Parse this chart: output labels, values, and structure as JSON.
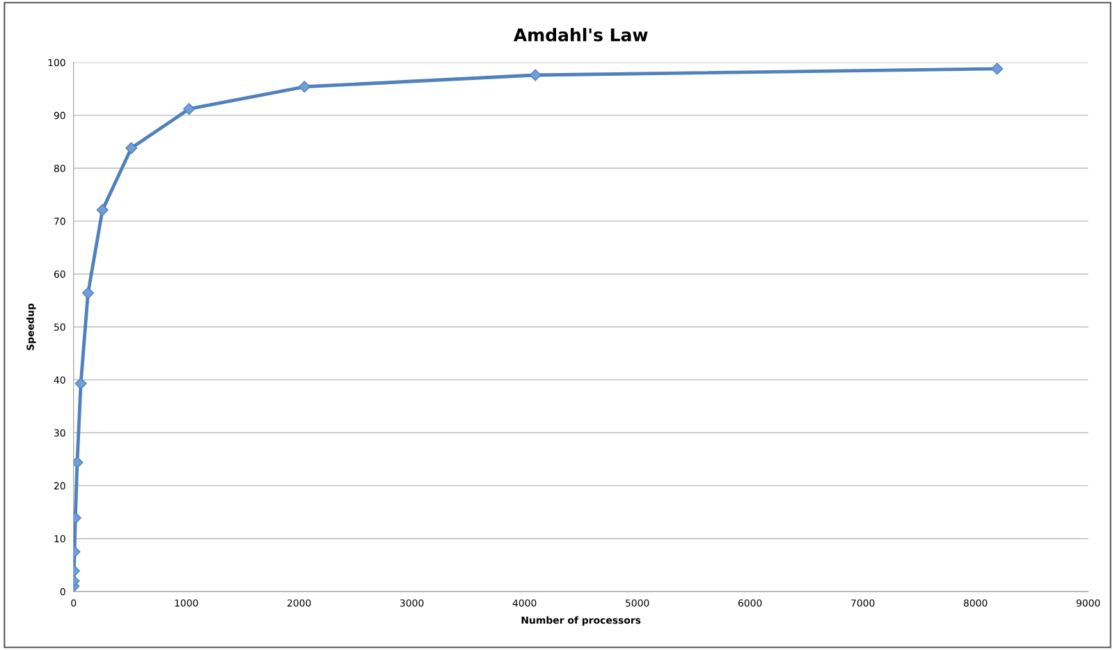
{
  "chart_data": {
    "type": "line",
    "title": "Amdahl's Law",
    "xlabel": "Number of processors",
    "ylabel": "Speedup",
    "x": [
      1,
      2,
      4,
      8,
      16,
      32,
      64,
      128,
      256,
      512,
      1024,
      2048,
      4096,
      8192
    ],
    "series": [
      {
        "color": "#4f81bd",
        "values": [
          1.0,
          2.0,
          3.9,
          7.5,
          13.9,
          24.4,
          39.3,
          56.4,
          72.1,
          83.8,
          91.2,
          95.4,
          97.6,
          98.8
        ]
      }
    ],
    "xlim": [
      0,
      9000
    ],
    "xticks": [
      0,
      1000,
      2000,
      3000,
      4000,
      5000,
      6000,
      7000,
      8000,
      9000
    ],
    "ylim": [
      0,
      100
    ],
    "yticks": [
      0,
      10,
      20,
      30,
      40,
      50,
      60,
      70,
      80,
      90,
      100
    ],
    "grid": "y",
    "marker": "diamond",
    "line_style": "solid"
  }
}
